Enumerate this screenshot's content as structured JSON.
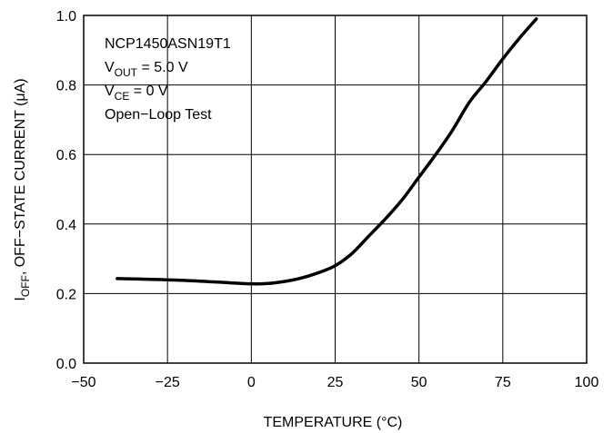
{
  "chart_data": {
    "type": "line",
    "xlabel": "TEMPERATURE (°C)",
    "ylabel": {
      "main": "I",
      "sub": "OFF",
      "rest": ", OFF−STATE CURRENT (μA)"
    },
    "xlim": [
      -50,
      100
    ],
    "ylim": [
      0,
      1.0
    ],
    "x_ticks": [
      -50,
      -25,
      0,
      25,
      50,
      75,
      100
    ],
    "x_tick_labels": [
      "−50",
      "−25",
      "0",
      "25",
      "50",
      "75",
      "100"
    ],
    "y_ticks": [
      0,
      0.2,
      0.4,
      0.6,
      0.8,
      1.0
    ],
    "y_tick_labels": [
      "0.0",
      "0.2",
      "0.4",
      "0.6",
      "0.8",
      "1.0"
    ],
    "grid": true,
    "annotations": {
      "device": "NCP1450ASN19T1",
      "vout": {
        "main": "V",
        "sub": "OUT",
        "rest": " = 5.0 V"
      },
      "vce": {
        "main": "V",
        "sub": "CE",
        "rest": " = 0 V"
      },
      "test": "Open−Loop Test"
    },
    "series": [
      {
        "x": [
          -40,
          -30,
          -20,
          -10,
          0,
          5,
          10,
          15,
          20,
          25,
          30,
          35,
          40,
          45,
          50,
          55,
          60,
          65,
          70,
          75,
          80,
          85
        ],
        "y": [
          0.243,
          0.241,
          0.238,
          0.233,
          0.228,
          0.229,
          0.235,
          0.245,
          0.26,
          0.28,
          0.315,
          0.365,
          0.415,
          0.47,
          0.535,
          0.6,
          0.67,
          0.75,
          0.81,
          0.875,
          0.935,
          0.99
        ],
        "color": "#000000"
      }
    ]
  }
}
